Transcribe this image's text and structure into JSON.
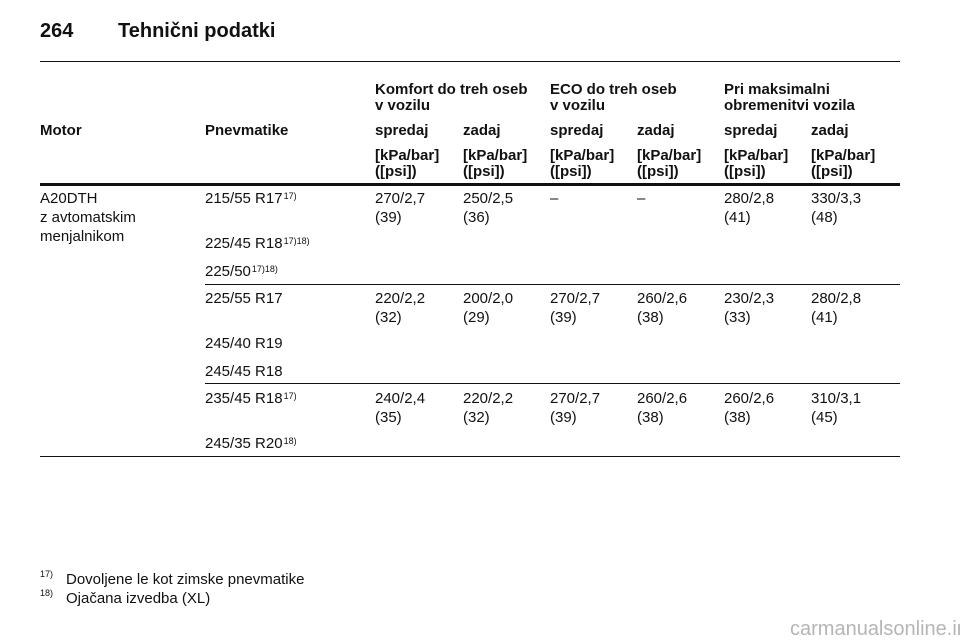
{
  "header": {
    "page": "264",
    "title": "Tehnični podatki"
  },
  "table": {
    "group_headers": [
      [
        "Komfort do treh oseb",
        "v vozilu"
      ],
      [
        "ECO do treh oseb",
        "v vozilu"
      ],
      [
        "Pri maksimalni",
        "obremenitvi vozila"
      ]
    ],
    "columns": [
      "Motor",
      "Pnevmatike",
      "spredaj",
      "zadaj",
      "spredaj",
      "zadaj",
      "spredaj",
      "zadaj"
    ],
    "units": [
      [
        "[kPa/bar]",
        "([psi])"
      ],
      [
        "[kPa/bar]",
        "([psi])"
      ],
      [
        "[kPa/bar]",
        "([psi])"
      ],
      [
        "[kPa/bar]",
        "([psi])"
      ],
      [
        "[kPa/bar]",
        "([psi])"
      ],
      [
        "[kPa/bar]",
        "([psi])"
      ]
    ],
    "groups": [
      {
        "motor": [
          "A20DTH",
          "z avtomatskim",
          "menjalnikom"
        ],
        "tires": [
          {
            "name": "215/55 R17",
            "note": "17)"
          },
          {
            "name": "225/45 R18",
            "note": "17)18)"
          },
          {
            "name": "225/50",
            "note": "17)18)"
          }
        ],
        "values": [
          [
            "270/2,7",
            "(39)"
          ],
          [
            "250/2,5",
            "(36)"
          ],
          [
            "–"
          ],
          [
            "–"
          ],
          [
            "280/2,8",
            "(41)"
          ],
          [
            "330/3,3",
            "(48)"
          ]
        ]
      },
      {
        "tires": [
          {
            "name": "225/55 R17"
          },
          {
            "name": "245/40 R19"
          },
          {
            "name": "245/45 R18"
          }
        ],
        "values": [
          [
            "220/2,2",
            "(32)"
          ],
          [
            "200/2,0",
            "(29)"
          ],
          [
            "270/2,7",
            "(39)"
          ],
          [
            "260/2,6",
            "(38)"
          ],
          [
            "230/2,3",
            "(33)"
          ],
          [
            "280/2,8",
            "(41)"
          ]
        ]
      },
      {
        "tires": [
          {
            "name": "235/45 R18",
            "note": "17)"
          },
          {
            "name": "245/35 R20",
            "note": "18)"
          }
        ],
        "values": [
          [
            "240/2,4",
            "(35)"
          ],
          [
            "220/2,2",
            "(32)"
          ],
          [
            "270/2,7",
            "(39)"
          ],
          [
            "260/2,6",
            "(38)"
          ],
          [
            "260/2,6",
            "(38)"
          ],
          [
            "310/3,1",
            "(45)"
          ]
        ]
      }
    ]
  },
  "footnotes": [
    {
      "mark": "17)",
      "text": "Dovoljene le kot zimske pnevmatike"
    },
    {
      "mark": "18)",
      "text": "Ojačana izvedba (XL)"
    }
  ],
  "watermark": "carmanualsonline.info"
}
